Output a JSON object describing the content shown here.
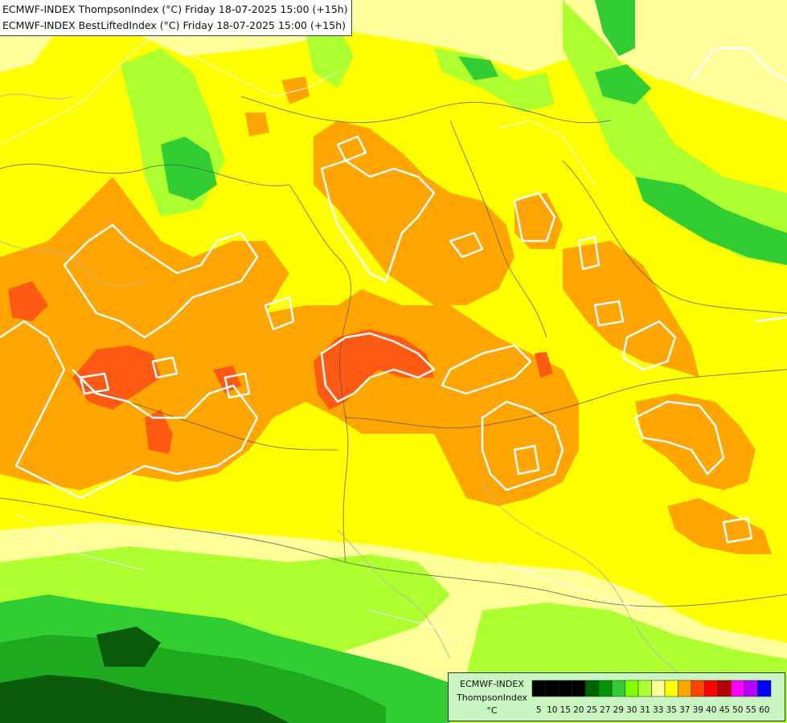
{
  "title": {
    "line1": "ECMWF-INDEX ThompsonIndex (°C) Friday 18-07-2025 15:00 (+15h)",
    "line2": "ECMWF-INDEX BestLiftedIndex (°C) Friday 18-07-2025 15:00 (+15h)"
  },
  "legend": {
    "title": "ECMWF-INDEX",
    "subtitle": "ThompsonIndex",
    "unit": "°C",
    "bins": [
      {
        "label": "5",
        "color": "#000000"
      },
      {
        "label": "10",
        "color": "#000000"
      },
      {
        "label": "15",
        "color": "#000000"
      },
      {
        "label": "20",
        "color": "#000000"
      },
      {
        "label": "25",
        "color": "#006400"
      },
      {
        "label": "27",
        "color": "#009600"
      },
      {
        "label": "29",
        "color": "#32cd32"
      },
      {
        "label": "30",
        "color": "#7fff00"
      },
      {
        "label": "31",
        "color": "#adff2f"
      },
      {
        "label": "33",
        "color": "#ffff99"
      },
      {
        "label": "35",
        "color": "#ffff00"
      },
      {
        "label": "37",
        "color": "#ffa500"
      },
      {
        "label": "39",
        "color": "#ff4500"
      },
      {
        "label": "40",
        "color": "#ff0000"
      },
      {
        "label": "45",
        "color": "#b40000"
      },
      {
        "label": "50",
        "color": "#ff00ff"
      },
      {
        "label": "55",
        "color": "#b400ff"
      },
      {
        "label": "60",
        "color": "#0000ff"
      }
    ]
  },
  "map_colors": {
    "green_dark": "#0a5a0a",
    "green": "#1eaa1e",
    "green_light": "#32cd32",
    "lime": "#adff2f",
    "pale_yellow": "#ffff99",
    "yellow": "#ffff00",
    "orange": "#ffa500",
    "red_orange": "#ff5a14",
    "contour": "#ffffff",
    "border": "#555555",
    "coast": "#c8b4a0"
  }
}
